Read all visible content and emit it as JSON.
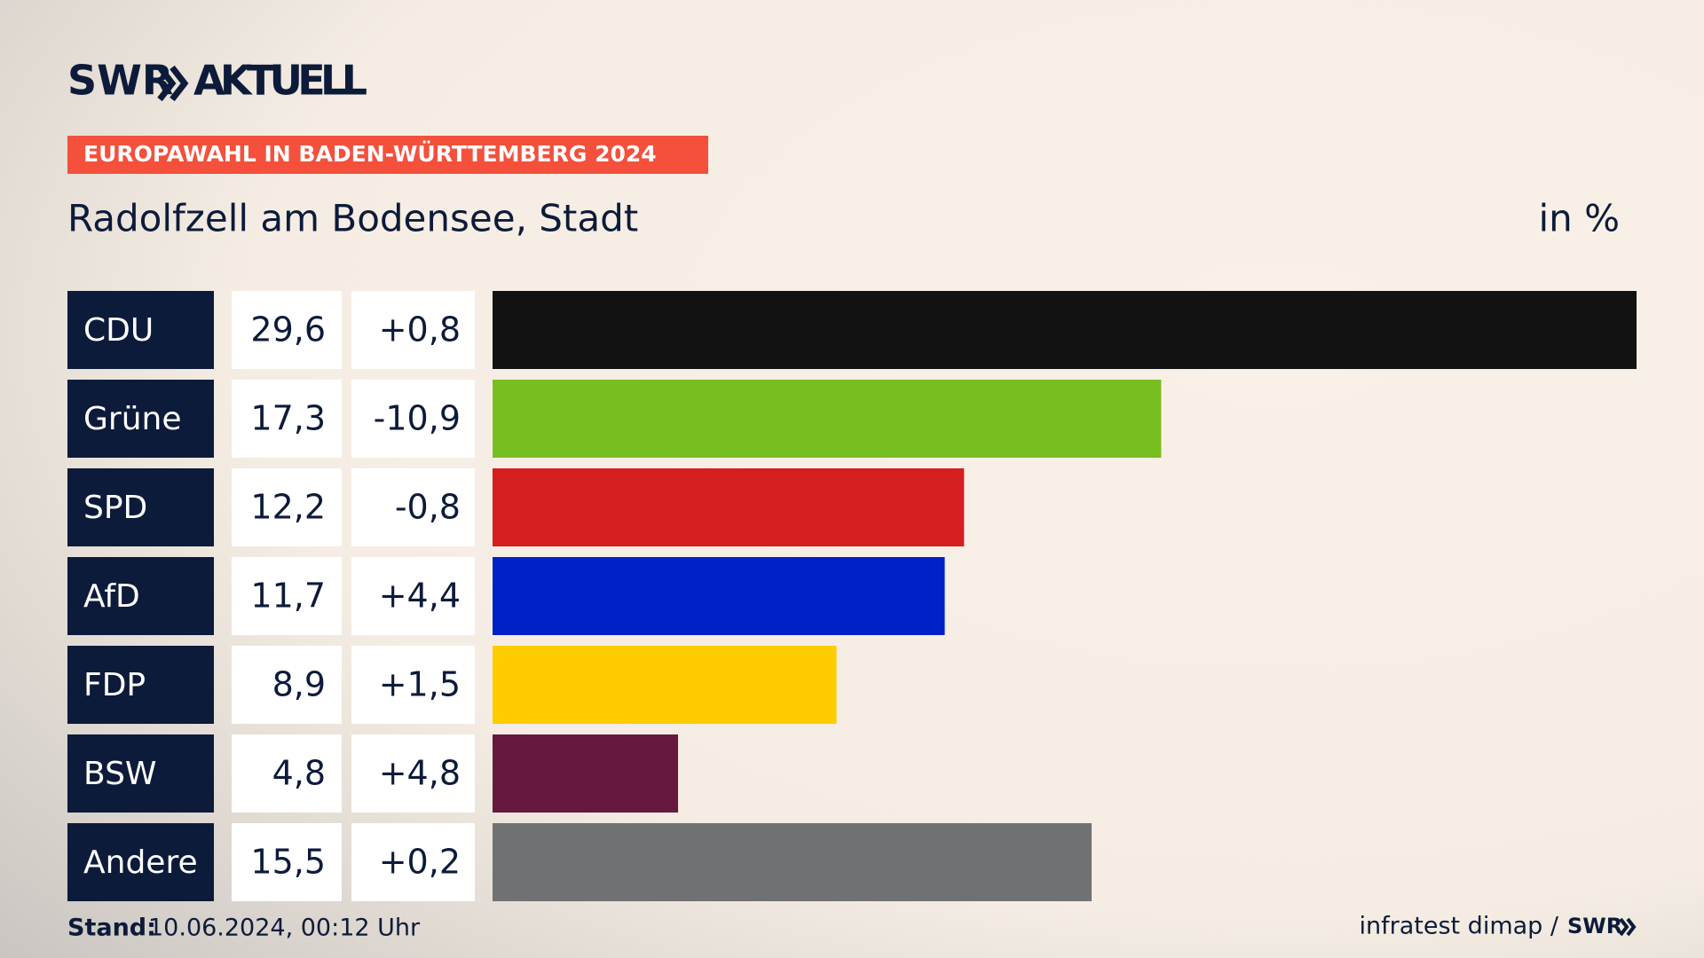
{
  "brand": "SWR",
  "brand_suffix": "AKTUELL",
  "banner": "EUROPAWAHL IN BADEN-WÜRTTEMBERG 2024",
  "footer": {
    "stand_label": "Stand:",
    "stand": "10.06.2024, 00:12 Uhr",
    "source": "infratest dimap /"
  },
  "chart_data": {
    "type": "bar",
    "title": "Radolfzell am Bodensee, Stadt",
    "unit": "in %",
    "categories": [
      "CDU",
      "Grüne",
      "SPD",
      "AfD",
      "FDP",
      "BSW",
      "Andere"
    ],
    "values": [
      29.6,
      17.3,
      12.2,
      11.7,
      8.9,
      4.8,
      15.5
    ],
    "value_labels": [
      "29,6",
      "17,3",
      "12,2",
      "11,7",
      "8,9",
      "4,8",
      "15,5"
    ],
    "changes": [
      "+0,8",
      "-10,9",
      "-0,8",
      "+4,4",
      "+1,5",
      "+4,8",
      "+0,2"
    ],
    "colors": [
      "#121212",
      "#78be1e",
      "#d51e20",
      "#0021c8",
      "#ffcc00",
      "#66183e",
      "#707173"
    ]
  }
}
